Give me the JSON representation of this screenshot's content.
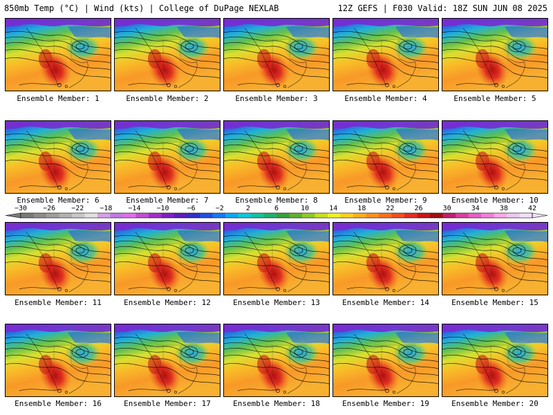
{
  "header": {
    "left": "850mb Temp (°C) | Wind (kts) | College of DuPage NEXLAB",
    "right": "12Z GEFS | F030 Valid: 18Z SUN JUN 08 2025"
  },
  "members": [
    "Ensemble Member: 1",
    "Ensemble Member: 2",
    "Ensemble Member: 3",
    "Ensemble Member: 4",
    "Ensemble Member: 5",
    "Ensemble Member: 6",
    "Ensemble Member: 7",
    "Ensemble Member: 8",
    "Ensemble Member: 9",
    "Ensemble Member: 10",
    "Ensemble Member: 11",
    "Ensemble Member: 12",
    "Ensemble Member: 13",
    "Ensemble Member: 14",
    "Ensemble Member: 15",
    "Ensemble Member: 16",
    "Ensemble Member: 17",
    "Ensemble Member: 18",
    "Ensemble Member: 19",
    "Ensemble Member: 20"
  ],
  "colorbar": {
    "tick_labels": [
      "−30",
      "−26",
      "−22",
      "−18",
      "−14",
      "−10",
      "−6",
      "−2",
      "2",
      "6",
      "10",
      "14",
      "18",
      "22",
      "26",
      "30",
      "34",
      "38",
      "42"
    ],
    "colors": [
      "#7a7a7a",
      "#8c8c8c",
      "#9e9e9e",
      "#b2b2b2",
      "#c8c8c8",
      "#e0e0e0",
      "#d6a0e8",
      "#c07ae0",
      "#e070e8",
      "#c050d0",
      "#a030c8",
      "#8020c0",
      "#5a20b8",
      "#3030c8",
      "#2050e0",
      "#1878f0",
      "#10a8f0",
      "#10c8d8",
      "#18c0a0",
      "#20b070",
      "#38a040",
      "#60b030",
      "#90c828",
      "#c8e020",
      "#f0f028",
      "#f8d020",
      "#f8b020",
      "#f89020",
      "#f87020",
      "#f05020",
      "#e03020",
      "#c81818",
      "#a01010",
      "#c02070",
      "#d840a0",
      "#e860c0",
      "#f080d8",
      "#f8a8e8",
      "#e8c8f0",
      "#f0e0f8"
    ]
  },
  "colors": {
    "pole": "#7a2ad0",
    "cold": "#2fa0e8",
    "cool": "#40c8b0",
    "mild": "#98d040",
    "warm_yellow": "#e8e030",
    "warm": "#f8a828",
    "hot": "#f06020",
    "very_hot": "#c81818"
  }
}
